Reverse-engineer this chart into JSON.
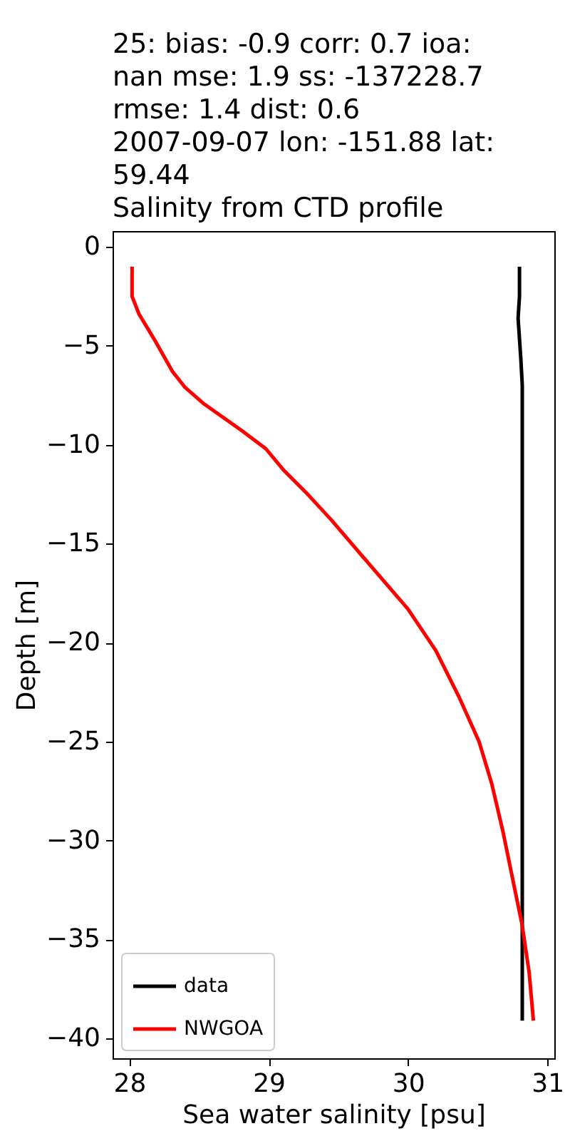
{
  "chart_data": {
    "type": "line",
    "title": "25: bias: -0.9  corr: 0.7  ioa:\nnan  mse: 1.9  ss: -137228.7\nrmse: 1.4  dist: 0.6\n2007-09-07 lon: -151.88 lat:\n59.44\nSalinity from CTD profile",
    "xlabel": "Sea water salinity [psu]",
    "ylabel": "Depth [m]",
    "xlim": [
      27.88,
      31.05
    ],
    "ylim": [
      -41.0,
      0.8
    ],
    "xticks": [
      28,
      29,
      30,
      31
    ],
    "yticks": [
      -40,
      -35,
      -30,
      -25,
      -20,
      -15,
      -10,
      -5,
      0
    ],
    "grid": false,
    "legend": "bottom left",
    "line_style": "solid",
    "series": [
      {
        "name": "data",
        "color": "#000000",
        "x": [
          30.8,
          30.8,
          30.79,
          30.81,
          30.82,
          30.82,
          30.82,
          30.82,
          30.82
        ],
        "values": [
          -1.0,
          -2.5,
          -3.6,
          -5.7,
          -7.0,
          -10.0,
          -20.0,
          -30.0,
          -39.1
        ]
      },
      {
        "name": "NWGOA",
        "color": "#ff0000",
        "x": [
          28.02,
          28.02,
          28.07,
          28.19,
          28.31,
          28.4,
          28.53,
          28.81,
          28.98,
          29.11,
          29.28,
          29.45,
          29.73,
          30.0,
          30.2,
          30.37,
          30.51,
          30.6,
          30.68,
          30.75,
          30.82,
          30.87,
          30.9
        ],
        "values": [
          -1.0,
          -2.5,
          -3.4,
          -4.8,
          -6.3,
          -7.1,
          -7.9,
          -9.3,
          -10.2,
          -11.3,
          -12.5,
          -13.8,
          -16.1,
          -18.3,
          -20.4,
          -22.8,
          -25.0,
          -27.1,
          -29.5,
          -31.9,
          -34.3,
          -36.7,
          -39.1
        ]
      }
    ]
  }
}
